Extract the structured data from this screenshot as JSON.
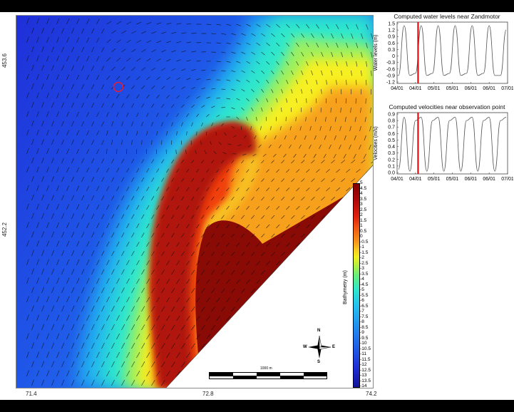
{
  "map": {
    "y_ticks": [
      "453.6",
      "452.2"
    ],
    "x_ticks": [
      "71.4",
      "72.8",
      "74.2"
    ],
    "observation_marker_color": "#e0203a",
    "colorbar": {
      "title": "Bathymetry (m)",
      "labels": [
        "5",
        "4.5",
        "4",
        "3.5",
        "3",
        "2.5",
        "2",
        "1.5",
        "1",
        "0.5",
        "0",
        "-0.5",
        "-1",
        "-1.5",
        "-2",
        "-2.5",
        "-3",
        "-3.5",
        "-4",
        "-4.5",
        "-5",
        "-5.5",
        "-6",
        "-6.5",
        "-7",
        "-7.5",
        "-8",
        "-8.5",
        "-9",
        "-9.5",
        "-10",
        "-10.5",
        "-11",
        "-11.5",
        "-12",
        "-12.5",
        "-13",
        "-13.5",
        "-14"
      ]
    },
    "scale_bar_label": "1000 m",
    "compass": {
      "n": "N",
      "e": "E",
      "s": "S",
      "w": "W"
    }
  },
  "chart_data": [
    {
      "type": "line",
      "title": "Computed water levels near Zandmotor",
      "ylabel": "Water levels (m)",
      "xticks": [
        "04/01",
        "04/01",
        "05/01",
        "05/01",
        "06/01",
        "06/01",
        "07/01"
      ],
      "yticks": [
        "1.5",
        "1.2",
        "0.9",
        "0.6",
        "0.3",
        "0",
        "-0.3",
        "-0.6",
        "-0.9",
        "-1.2"
      ],
      "ylim": [
        -1.2,
        1.5
      ],
      "series": [
        {
          "values": [
            -0.9,
            1.4,
            -0.9,
            -0.8,
            1.4,
            -0.9,
            -0.8,
            1.4,
            -0.9,
            -0.8,
            1.4,
            -0.9,
            -0.8,
            1.4,
            -0.9,
            -0.8,
            1.4,
            -0.9,
            -0.9,
            1.2
          ]
        }
      ],
      "marker_position": 0.19,
      "marker_color": "#dd1111"
    },
    {
      "type": "line",
      "title": "Computed velocities near observation point",
      "ylabel": "Velocities (m/s)",
      "xticks": [
        "04/01",
        "04/01",
        "05/01",
        "05/01",
        "06/01",
        "06/01",
        "07/01"
      ],
      "yticks": [
        "0.9",
        "0.8",
        "0.7",
        "0.6",
        "0.5",
        "0.4",
        "0.3",
        "0.2",
        "0.1",
        "0.0"
      ],
      "ylim": [
        0,
        0.9
      ],
      "series": [
        {
          "values": [
            0.05,
            0.85,
            0.02,
            0.8,
            0.85,
            0.02,
            0.8,
            0.85,
            0.02,
            0.8,
            0.85,
            0.02,
            0.8,
            0.85,
            0.02,
            0.8,
            0.85,
            0.02,
            0.8,
            0.85
          ]
        }
      ],
      "marker_position": 0.19,
      "marker_color": "#dd1111"
    }
  ]
}
